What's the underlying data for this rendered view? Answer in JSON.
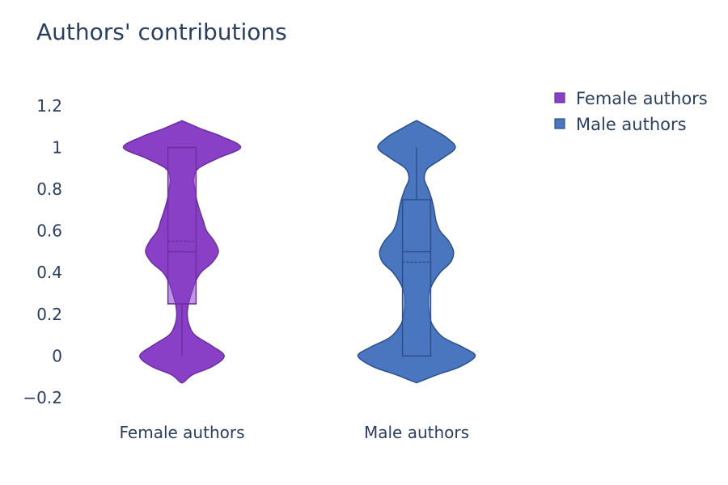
{
  "chart_data": {
    "type": "violin",
    "title": "Authors' contributions",
    "xlabel": "",
    "ylabel": "",
    "categories": [
      "Female authors",
      "Male authors"
    ],
    "yticks": [
      "−0.2",
      "0",
      "0.2",
      "0.4",
      "0.6",
      "0.8",
      "1",
      "1.2"
    ],
    "ytick_values": [
      -0.2,
      0,
      0.2,
      0.4,
      0.6,
      0.8,
      1.0,
      1.2
    ],
    "ylim": [
      -0.27,
      1.32
    ],
    "grid": false,
    "legend_position": "top-right",
    "series": [
      {
        "name": "Female authors",
        "color": "#8a3fc7",
        "edge_color": "#6b2fa0",
        "box": {
          "q1": 0.25,
          "median": 0.5,
          "mean": 0.55,
          "q3": 1.0,
          "lower_whisker": 0.0,
          "upper_whisker": 1.0
        },
        "density": [
          [
            -0.125,
            0.03
          ],
          [
            -0.09,
            0.18
          ],
          [
            -0.05,
            0.52
          ],
          [
            0.0,
            0.72
          ],
          [
            0.05,
            0.5
          ],
          [
            0.1,
            0.22
          ],
          [
            0.15,
            0.12
          ],
          [
            0.2,
            0.09
          ],
          [
            0.25,
            0.11
          ],
          [
            0.3,
            0.16
          ],
          [
            0.35,
            0.22
          ],
          [
            0.4,
            0.32
          ],
          [
            0.45,
            0.52
          ],
          [
            0.5,
            0.62
          ],
          [
            0.55,
            0.55
          ],
          [
            0.6,
            0.42
          ],
          [
            0.65,
            0.36
          ],
          [
            0.7,
            0.3
          ],
          [
            0.75,
            0.25
          ],
          [
            0.8,
            0.22
          ],
          [
            0.85,
            0.2
          ],
          [
            0.9,
            0.28
          ],
          [
            0.95,
            0.62
          ],
          [
            1.0,
            1.0
          ],
          [
            1.05,
            0.7
          ],
          [
            1.09,
            0.32
          ],
          [
            1.125,
            0.03
          ]
        ]
      },
      {
        "name": "Male authors",
        "color": "#4a76bf",
        "edge_color": "#2b4f8a",
        "box": {
          "q1": 0.0,
          "median": 0.5,
          "mean": 0.45,
          "q3": 0.75,
          "lower_whisker": 0.0,
          "upper_whisker": 1.0
        },
        "density": [
          [
            -0.125,
            0.03
          ],
          [
            -0.09,
            0.35
          ],
          [
            -0.05,
            0.75
          ],
          [
            0.0,
            1.0
          ],
          [
            0.04,
            0.8
          ],
          [
            0.09,
            0.45
          ],
          [
            0.15,
            0.27
          ],
          [
            0.2,
            0.22
          ],
          [
            0.25,
            0.2
          ],
          [
            0.3,
            0.21
          ],
          [
            0.35,
            0.28
          ],
          [
            0.4,
            0.4
          ],
          [
            0.45,
            0.58
          ],
          [
            0.5,
            0.63
          ],
          [
            0.55,
            0.55
          ],
          [
            0.6,
            0.4
          ],
          [
            0.65,
            0.33
          ],
          [
            0.7,
            0.3
          ],
          [
            0.75,
            0.26
          ],
          [
            0.8,
            0.2
          ],
          [
            0.85,
            0.13
          ],
          [
            0.9,
            0.19
          ],
          [
            0.95,
            0.45
          ],
          [
            1.0,
            0.66
          ],
          [
            1.05,
            0.5
          ],
          [
            1.09,
            0.26
          ],
          [
            1.125,
            0.03
          ]
        ]
      }
    ]
  }
}
